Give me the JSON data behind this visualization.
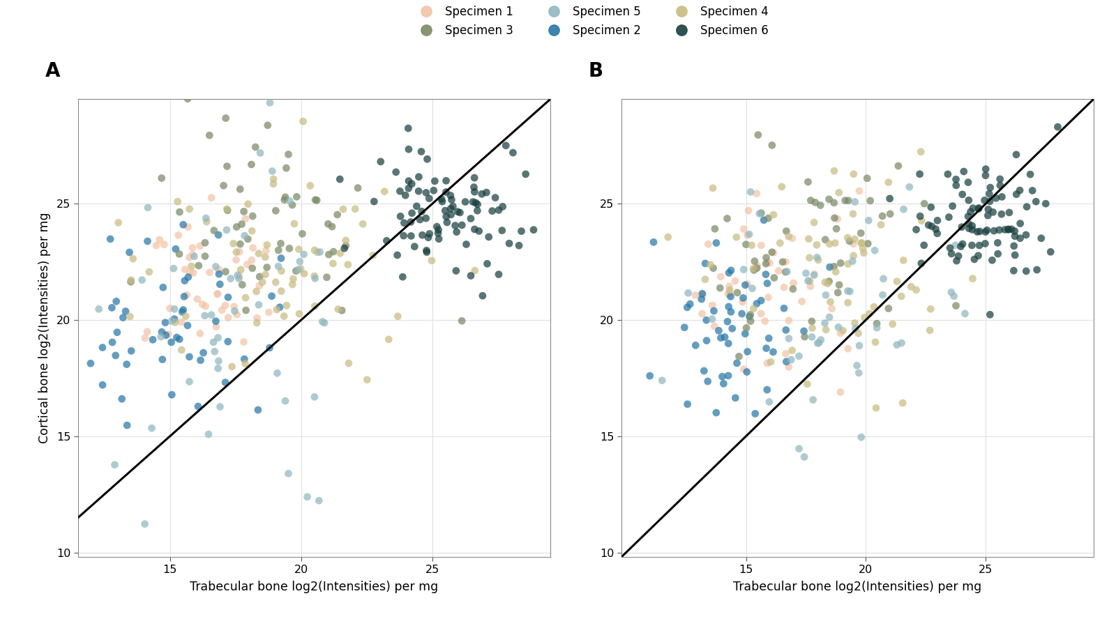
{
  "specimen_colors": {
    "Specimen 1": "#f2c4a8",
    "Specimen 2": "#2878a8",
    "Specimen 3": "#7a8a65",
    "Specimen 4": "#c8bc82",
    "Specimen 5": "#90b8c0",
    "Specimen 6": "#1a4040"
  },
  "xlabel": "Trabecular bone log2(Intensities) per mg",
  "ylabel": "Cortical bone log2(Intensities) per mg",
  "panel_A_label": "A",
  "panel_B_label": "B",
  "xlim_A": [
    11.5,
    29.5
  ],
  "ylim_A": [
    9.8,
    29.5
  ],
  "xlim_B": [
    9.8,
    29.5
  ],
  "ylim_B": [
    9.8,
    29.5
  ],
  "xticks_A": [
    15,
    20,
    25
  ],
  "yticks_A": [
    10,
    15,
    20,
    25
  ],
  "xticks_B": [
    15,
    20,
    25
  ],
  "yticks_B": [
    10,
    15,
    20,
    25
  ],
  "marker_size": 60,
  "alpha": 0.72,
  "background_color": "#ffffff",
  "grid_color": "#e0e0e0",
  "legend_row1": [
    "Specimen 1",
    "Specimen 3",
    "Specimen 5"
  ],
  "legend_row2": [
    "Specimen 2",
    "Specimen 4",
    "Specimen 6"
  ]
}
